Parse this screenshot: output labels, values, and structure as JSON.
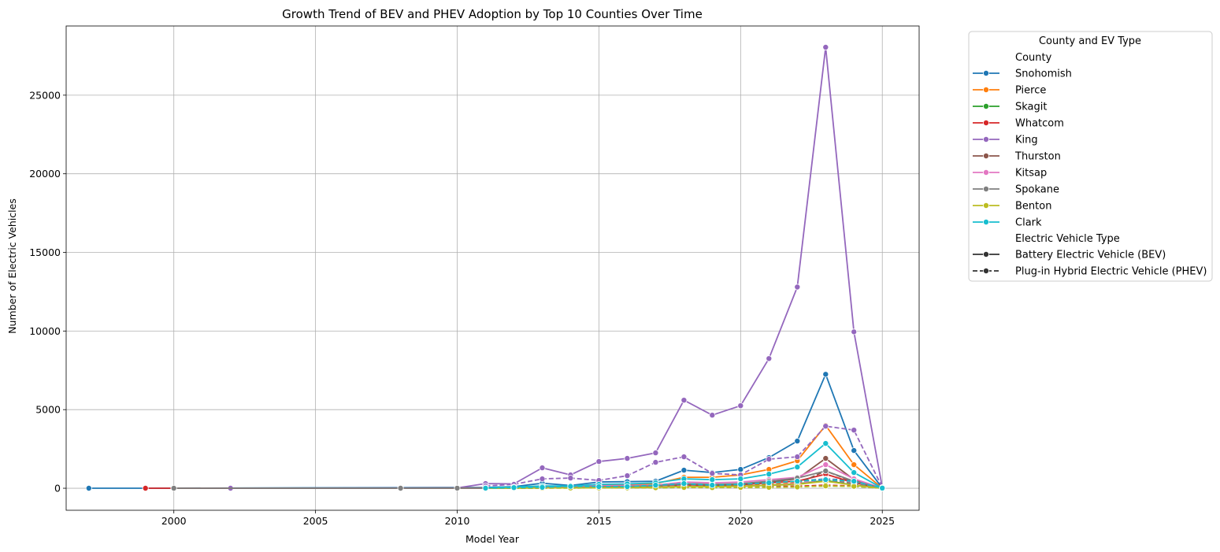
{
  "chart_data": {
    "type": "line",
    "title": "Growth Trend of BEV and PHEV Adoption by Top 10 Counties Over Time",
    "xlabel": "Model Year",
    "ylabel": "Number of Electric Vehicles",
    "xlim": [
      1996.2,
      2026.3
    ],
    "ylim": [
      -1400,
      29400
    ],
    "xticks": [
      2000,
      2005,
      2010,
      2015,
      2020,
      2025
    ],
    "yticks": [
      0,
      5000,
      10000,
      15000,
      20000,
      25000
    ],
    "xtick_labels": [
      "2000",
      "2005",
      "2010",
      "2015",
      "2020",
      "2025"
    ],
    "ytick_labels": [
      "0",
      "5000",
      "10000",
      "15000",
      "20000",
      "25000"
    ],
    "grid": true,
    "legend": {
      "title": "County and EV Type",
      "placement": "outside upper right",
      "county_header": "County",
      "type_header": "Electric Vehicle Type",
      "counties": [
        {
          "name": "Snohomish",
          "color": "#1f77b4"
        },
        {
          "name": "Pierce",
          "color": "#ff7f0e"
        },
        {
          "name": "Skagit",
          "color": "#2ca02c"
        },
        {
          "name": "Whatcom",
          "color": "#d62728"
        },
        {
          "name": "King",
          "color": "#9467bd"
        },
        {
          "name": "Thurston",
          "color": "#8c564b"
        },
        {
          "name": "Kitsap",
          "color": "#e377c2"
        },
        {
          "name": "Spokane",
          "color": "#7f7f7f"
        },
        {
          "name": "Benton",
          "color": "#bcbd22"
        },
        {
          "name": "Clark",
          "color": "#17becf"
        }
      ],
      "types": [
        {
          "name": "Battery Electric Vehicle (BEV)",
          "dash": "solid"
        },
        {
          "name": "Plug-in Hybrid Electric Vehicle (PHEV)",
          "dash": "dashed"
        }
      ]
    },
    "series": [
      {
        "county": "Snohomish",
        "type": "BEV",
        "color": "#1f77b4",
        "x": [
          1997,
          1999,
          2011,
          2012,
          2013,
          2014,
          2015,
          2016,
          2017,
          2018,
          2019,
          2020,
          2021,
          2022,
          2023,
          2024,
          2025
        ],
        "y": [
          1,
          1,
          50,
          100,
          320,
          180,
          400,
          420,
          450,
          1150,
          1000,
          1200,
          1950,
          3000,
          7250,
          2400,
          10
        ]
      },
      {
        "county": "Snohomish",
        "type": "PHEV",
        "color": "#1f77b4",
        "x": [
          2011,
          2012,
          2013,
          2014,
          2015,
          2016,
          2017,
          2018,
          2019,
          2020,
          2021,
          2022,
          2023,
          2024,
          2025
        ],
        "y": [
          5,
          40,
          60,
          100,
          120,
          150,
          200,
          300,
          220,
          250,
          350,
          450,
          600,
          500,
          10
        ]
      },
      {
        "county": "Pierce",
        "type": "BEV",
        "color": "#ff7f0e",
        "x": [
          2011,
          2012,
          2013,
          2014,
          2015,
          2016,
          2017,
          2018,
          2019,
          2020,
          2021,
          2022,
          2023,
          2024,
          2025
        ],
        "y": [
          20,
          50,
          150,
          100,
          200,
          220,
          300,
          700,
          700,
          850,
          1200,
          1750,
          4000,
          1500,
          5
        ]
      },
      {
        "county": "Pierce",
        "type": "PHEV",
        "color": "#ff7f0e",
        "x": [
          2011,
          2012,
          2013,
          2014,
          2015,
          2016,
          2017,
          2018,
          2019,
          2020,
          2021,
          2022,
          2023,
          2024,
          2025
        ],
        "y": [
          5,
          20,
          40,
          60,
          80,
          100,
          150,
          200,
          150,
          200,
          250,
          350,
          500,
          400,
          5
        ]
      },
      {
        "county": "Skagit",
        "type": "BEV",
        "color": "#2ca02c",
        "x": [
          2011,
          2012,
          2013,
          2014,
          2015,
          2016,
          2017,
          2018,
          2019,
          2020,
          2021,
          2022,
          2023,
          2024,
          2025
        ],
        "y": [
          5,
          10,
          20,
          20,
          30,
          40,
          60,
          120,
          100,
          120,
          200,
          280,
          500,
          200,
          2
        ]
      },
      {
        "county": "Skagit",
        "type": "PHEV",
        "color": "#2ca02c",
        "x": [
          2011,
          2012,
          2013,
          2014,
          2015,
          2016,
          2017,
          2018,
          2019,
          2020,
          2021,
          2022,
          2023,
          2024,
          2025
        ],
        "y": [
          2,
          8,
          10,
          15,
          20,
          25,
          30,
          50,
          40,
          50,
          70,
          100,
          150,
          120,
          2
        ]
      },
      {
        "county": "Whatcom",
        "type": "BEV",
        "color": "#d62728",
        "x": [
          1999,
          2000,
          2011,
          2012,
          2013,
          2014,
          2015,
          2016,
          2017,
          2018,
          2019,
          2020,
          2021,
          2022,
          2023,
          2024,
          2025
        ],
        "y": [
          1,
          1,
          10,
          20,
          40,
          40,
          60,
          80,
          100,
          200,
          180,
          220,
          350,
          450,
          900,
          350,
          3
        ]
      },
      {
        "county": "Whatcom",
        "type": "PHEV",
        "color": "#d62728",
        "x": [
          2011,
          2012,
          2013,
          2014,
          2015,
          2016,
          2017,
          2018,
          2019,
          2020,
          2021,
          2022,
          2023,
          2024,
          2025
        ],
        "y": [
          2,
          10,
          15,
          20,
          25,
          30,
          40,
          60,
          50,
          60,
          90,
          130,
          200,
          150,
          2
        ]
      },
      {
        "county": "King",
        "type": "BEV",
        "color": "#9467bd",
        "x": [
          2002,
          2008,
          2010,
          2011,
          2012,
          2013,
          2014,
          2015,
          2016,
          2017,
          2018,
          2019,
          2020,
          2021,
          2022,
          2023,
          2024,
          2025
        ],
        "y": [
          1,
          10,
          20,
          300,
          280,
          1300,
          850,
          1700,
          1900,
          2250,
          5600,
          4650,
          5250,
          8250,
          12800,
          28050,
          9950,
          50
        ]
      },
      {
        "county": "King",
        "type": "PHEV",
        "color": "#9467bd",
        "x": [
          2011,
          2012,
          2013,
          2014,
          2015,
          2016,
          2017,
          2018,
          2019,
          2020,
          2021,
          2022,
          2023,
          2024,
          2025
        ],
        "y": [
          150,
          250,
          600,
          650,
          500,
          800,
          1650,
          2000,
          950,
          850,
          1850,
          2000,
          3950,
          3700,
          50
        ]
      },
      {
        "county": "Thurston",
        "type": "BEV",
        "color": "#8c564b",
        "x": [
          2000,
          2011,
          2012,
          2013,
          2014,
          2015,
          2016,
          2017,
          2018,
          2019,
          2020,
          2021,
          2022,
          2023,
          2024,
          2025
        ],
        "y": [
          1,
          10,
          25,
          60,
          50,
          80,
          100,
          120,
          250,
          200,
          250,
          400,
          600,
          1900,
          550,
          5
        ]
      },
      {
        "county": "Thurston",
        "type": "PHEV",
        "color": "#8c564b",
        "x": [
          2011,
          2012,
          2013,
          2014,
          2015,
          2016,
          2017,
          2018,
          2019,
          2020,
          2021,
          2022,
          2023,
          2024,
          2025
        ],
        "y": [
          5,
          20,
          30,
          40,
          50,
          60,
          80,
          120,
          90,
          100,
          150,
          300,
          1100,
          400,
          5
        ]
      },
      {
        "county": "Kitsap",
        "type": "BEV",
        "color": "#e377c2",
        "x": [
          2011,
          2012,
          2013,
          2014,
          2015,
          2016,
          2017,
          2018,
          2019,
          2020,
          2021,
          2022,
          2023,
          2024,
          2025
        ],
        "y": [
          20,
          40,
          100,
          100,
          150,
          180,
          200,
          400,
          350,
          400,
          550,
          700,
          1500,
          600,
          5
        ]
      },
      {
        "county": "Kitsap",
        "type": "PHEV",
        "color": "#e377c2",
        "x": [
          2011,
          2012,
          2013,
          2014,
          2015,
          2016,
          2017,
          2018,
          2019,
          2020,
          2021,
          2022,
          2023,
          2024,
          2025
        ],
        "y": [
          5,
          20,
          30,
          40,
          60,
          70,
          90,
          150,
          100,
          120,
          180,
          300,
          600,
          400,
          5
        ]
      },
      {
        "county": "Spokane",
        "type": "BEV",
        "color": "#7f7f7f",
        "x": [
          2000,
          2008,
          2010,
          2011,
          2012,
          2013,
          2014,
          2015,
          2016,
          2017,
          2018,
          2019,
          2020,
          2021,
          2022,
          2023,
          2024,
          2025
        ],
        "y": [
          1,
          1,
          5,
          10,
          20,
          40,
          50,
          100,
          120,
          150,
          300,
          250,
          300,
          450,
          650,
          1100,
          450,
          5
        ]
      },
      {
        "county": "Spokane",
        "type": "PHEV",
        "color": "#7f7f7f",
        "x": [
          2011,
          2012,
          2013,
          2014,
          2015,
          2016,
          2017,
          2018,
          2019,
          2020,
          2021,
          2022,
          2023,
          2024,
          2025
        ],
        "y": [
          3,
          10,
          20,
          30,
          40,
          50,
          60,
          100,
          80,
          100,
          150,
          250,
          500,
          300,
          3
        ]
      },
      {
        "county": "Benton",
        "type": "BEV",
        "color": "#bcbd22",
        "x": [
          2011,
          2012,
          2013,
          2014,
          2015,
          2016,
          2017,
          2018,
          2019,
          2020,
          2021,
          2022,
          2023,
          2024,
          2025
        ],
        "y": [
          5,
          10,
          20,
          20,
          40,
          50,
          60,
          120,
          100,
          130,
          180,
          250,
          450,
          200,
          2
        ]
      },
      {
        "county": "Benton",
        "type": "PHEV",
        "color": "#bcbd22",
        "x": [
          2011,
          2012,
          2013,
          2014,
          2015,
          2016,
          2017,
          2018,
          2019,
          2020,
          2021,
          2022,
          2023,
          2024,
          2025
        ],
        "y": [
          2,
          5,
          10,
          15,
          20,
          25,
          30,
          50,
          40,
          50,
          60,
          80,
          150,
          120,
          2
        ]
      },
      {
        "county": "Clark",
        "type": "BEV",
        "color": "#17becf",
        "x": [
          2011,
          2012,
          2013,
          2014,
          2015,
          2016,
          2017,
          2018,
          2019,
          2020,
          2021,
          2022,
          2023,
          2024,
          2025
        ],
        "y": [
          30,
          80,
          150,
          150,
          250,
          280,
          350,
          600,
          550,
          600,
          900,
          1350,
          2850,
          1000,
          10
        ]
      },
      {
        "county": "Clark",
        "type": "PHEV",
        "color": "#17becf",
        "x": [
          2011,
          2012,
          2013,
          2014,
          2015,
          2016,
          2017,
          2018,
          2019,
          2020,
          2021,
          2022,
          2023,
          2024,
          2025
        ],
        "y": [
          5,
          40,
          60,
          120,
          100,
          100,
          200,
          300,
          200,
          250,
          350,
          450,
          550,
          450,
          10
        ]
      }
    ]
  }
}
